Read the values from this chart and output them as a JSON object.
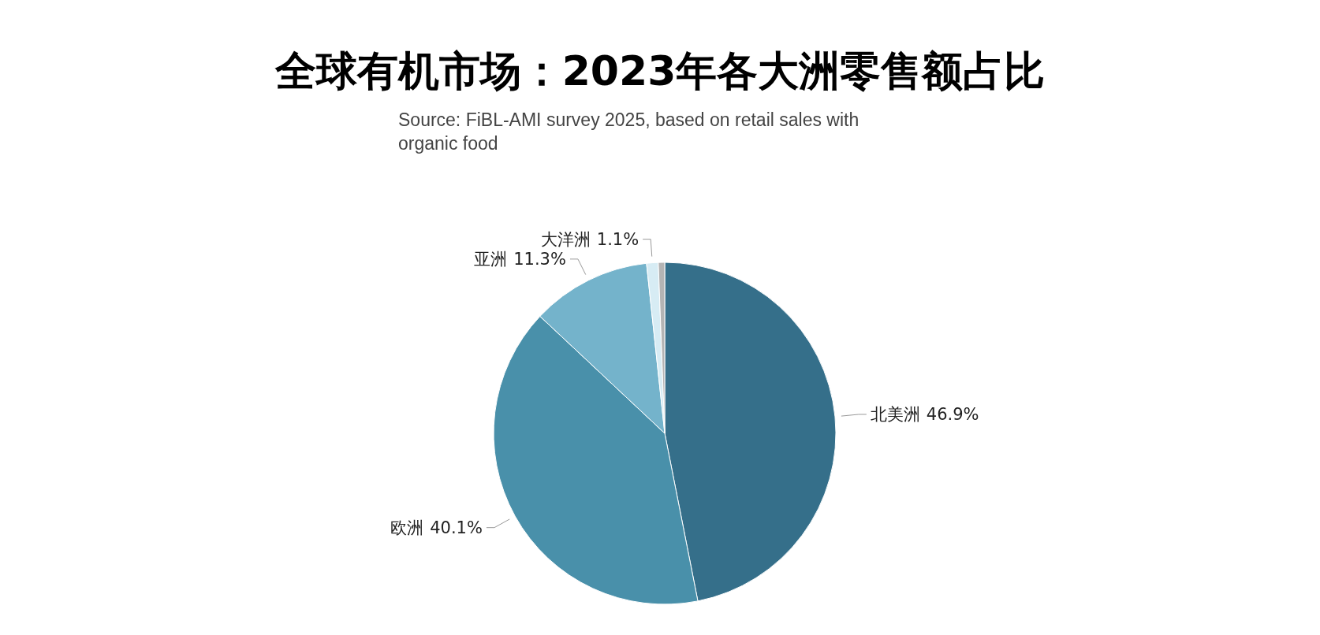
{
  "chart_data": {
    "type": "pie",
    "title": "全球有机市场：2023年各大洲零售额占比",
    "subtitle": "Source: FiBL-AMI survey 2025, based on retail sales with organic food",
    "categories": [
      "北美洲",
      "欧洲",
      "亚洲",
      "大洋洲",
      null
    ],
    "values": [
      46.9,
      40.1,
      11.3,
      1.1,
      0.6
    ],
    "value_labels": [
      "46.9%",
      "40.1%",
      "11.3%",
      "1.1%",
      null
    ],
    "colors": [
      "#356f8a",
      "#4990aa",
      "#74b3cb",
      "#d7ecf4",
      "#b4b4b4"
    ],
    "legend": false
  }
}
